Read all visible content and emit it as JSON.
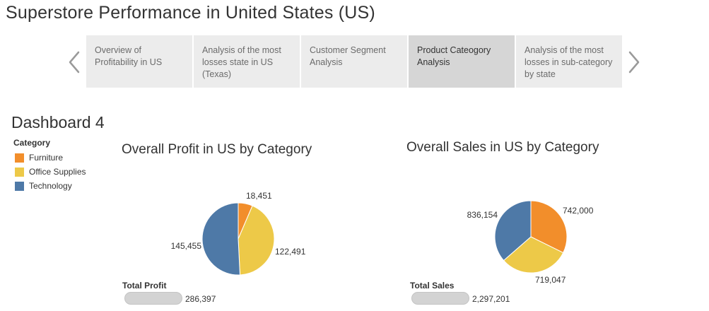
{
  "page_title": "Superstore Performance in United States (US)",
  "story_nav": {
    "prev_icon": "chevron-left-icon",
    "next_icon": "chevron-right-icon",
    "points": [
      {
        "label": "Overview of Profitability in US",
        "active": false
      },
      {
        "label": "Analysis of the most losses state in US (Texas)",
        "active": false
      },
      {
        "label": "Customer Segment Analysis",
        "active": false
      },
      {
        "label": "Product Cateogory Analysis",
        "active": true
      },
      {
        "label": "Analysis of the most losses in sub-category by state",
        "active": false
      }
    ]
  },
  "dashboard_title": "Dashboard 4",
  "legend": {
    "title": "Category",
    "items": [
      {
        "label": "Furniture",
        "color": "#f28e2b"
      },
      {
        "label": "Office Supplies",
        "color": "#edc948"
      },
      {
        "label": "Technology",
        "color": "#4e79a7"
      }
    ]
  },
  "chart_data": [
    {
      "type": "pie",
      "title": "Overall Profit in US by Category",
      "categories": [
        "Furniture",
        "Office Supplies",
        "Technology"
      ],
      "values": [
        18451,
        122491,
        145455
      ],
      "value_labels": [
        "18,451",
        "122,491",
        "145,455"
      ],
      "total_label": "Total Profit",
      "total_value": "286,397"
    },
    {
      "type": "pie",
      "title": "Overall Sales in US by Category",
      "categories": [
        "Furniture",
        "Office Supplies",
        "Technology"
      ],
      "values": [
        742000,
        719047,
        836154
      ],
      "value_labels": [
        "742,000",
        "719,047",
        "836,154"
      ],
      "total_label": "Total Sales",
      "total_value": "2,297,201"
    }
  ]
}
